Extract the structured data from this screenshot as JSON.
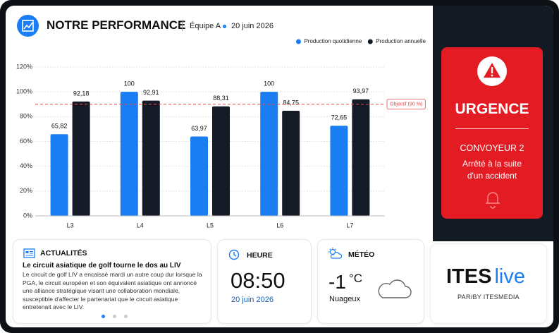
{
  "header": {
    "title": "NOTRE PERFORMANCE",
    "team": "Équipe A",
    "date": "20 juin 2026"
  },
  "chart_data": {
    "type": "bar",
    "categories": [
      "L3",
      "L4",
      "L5",
      "L6",
      "L7"
    ],
    "series": [
      {
        "name": "Production quotidienne",
        "color": "#1a7ef2",
        "values": [
          65.82,
          100,
          63.97,
          100,
          72.65
        ],
        "value_labels": [
          "65,82",
          "100",
          "63,97",
          "100",
          "72,65"
        ]
      },
      {
        "name": "Production annuelle",
        "color": "#141b26",
        "values": [
          92.18,
          92.91,
          88.31,
          84.75,
          93.97
        ],
        "value_labels": [
          "92,18",
          "92,91",
          "88,31",
          "84,75",
          "93,97"
        ]
      }
    ],
    "ylim": [
      0,
      120
    ],
    "yticks": [
      {
        "value": 0,
        "label": "0%"
      },
      {
        "value": 20,
        "label": "20%"
      },
      {
        "value": 40,
        "label": "40%"
      },
      {
        "value": 60,
        "label": "60%"
      },
      {
        "value": 80,
        "label": "80%"
      },
      {
        "value": 100,
        "label": "100%"
      },
      {
        "value": 120,
        "label": "120%"
      }
    ],
    "grid": true,
    "legend": "top-right",
    "annotation": {
      "value": 90,
      "label": "Objectif (90 %)",
      "color": "#e8454a"
    }
  },
  "alert": {
    "title": "URGENCE",
    "subject": "CONVOYEUR 2",
    "message": [
      "Arrêté à la suite",
      "d'un accident"
    ]
  },
  "news": {
    "heading": "ACTUALITÉS",
    "title": "Le circuit asiatique de golf tourne le dos au LIV",
    "body": "Le circuit de golf LIV a encaissé mardi un autre coup dur lorsque la PGA, le circuit européen et son équivalent asiatique ont annoncé une alliance stratégique visant une collaboration mondiale, susceptible d'affecter le partenariat que le circuit asiatique entretenait avec le LIV."
  },
  "time": {
    "heading": "HEURE",
    "clock": "08:50",
    "date": "20 juin 2026"
  },
  "weather": {
    "heading": "MÉTÉO",
    "temperature": "-1",
    "unit": "°C",
    "condition": "Nuageux"
  },
  "logo": {
    "brand": "ITES",
    "suffix": "live",
    "tagline": "PAR/BY ITESMEDIA"
  }
}
